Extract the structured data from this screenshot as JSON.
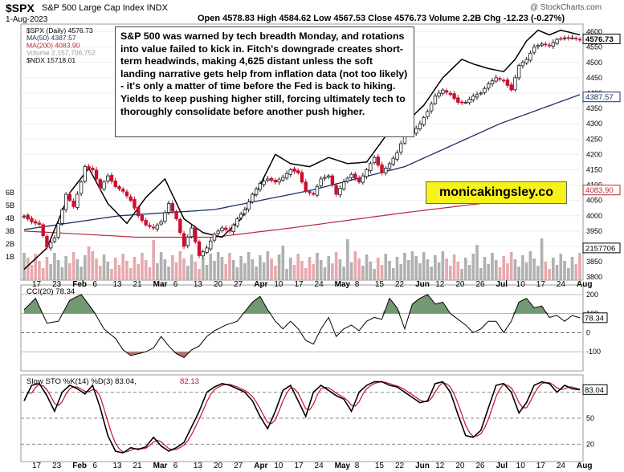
{
  "header": {
    "symbol": "$SPX",
    "name": "S&P 500 Large Cap Index INDX",
    "date": "1-Aug-2023",
    "ohlc": "Open 4578.83  High 4584.62  Low 4567.53  Close 4576.73  Volume 2.2B  Chg -12.23 (-0.27%)",
    "watermark": "@ StockCharts.com"
  },
  "annotation": "S&P 500 was warned by tech breadth Monday, and rotations into value failed to kick in. Fitch's downgrade creates short-term headwinds, making 4,625 distant unless the soft landing narrative gets help from inflation data (not too likely) - it's only a matter of time before the Fed is back to hiking. Yields to keep pushing higher still, forcing ultimately tech to thoroughly consolidate before another push higher.",
  "brand": "monicakingsley.co",
  "colors": {
    "up": "#1a1a1a",
    "down": "#c8102e",
    "ma50": "#1b2f6b",
    "ma200": "#b5283a",
    "ndx": "#000000",
    "vol": "#b0b0b0",
    "vol_down": "#e7a8ad",
    "pos": "#4f7f4f",
    "neg": "#a0524c"
  },
  "chart_data": [
    {
      "type": "candlestick",
      "title": "$SPX (Daily) 4576.73",
      "legend": [
        "$SPX (Daily) 4576.73",
        "MA(50) 4387.57",
        "MA(200) 4083.90",
        "Volume 2,157,706,752",
        "$NDX 15718.01"
      ],
      "yticks": [
        3800,
        3850,
        3900,
        3950,
        4000,
        4050,
        4100,
        4150,
        4200,
        4250,
        4300,
        4350,
        4400,
        4450,
        4500,
        4550,
        4600
      ],
      "ylim": [
        3790,
        4625
      ],
      "volume_ticks": [
        "6B",
        "5B",
        "4B",
        "3B",
        "2B",
        "1B"
      ],
      "price_labels": {
        "last": "4576.73",
        "ma50": "4387.57",
        "ma200": "4083.90",
        "volume": "2157706"
      },
      "x_labels": [
        "17",
        "23",
        "Feb",
        "6",
        "13",
        "21",
        "Mar",
        "6",
        "13",
        "20",
        "27",
        "Apr",
        "10",
        "17",
        "24",
        "May",
        "8",
        "15",
        "22",
        "Jun",
        "12",
        "20",
        "26",
        "Jul",
        "10",
        "17",
        "24",
        "Aug"
      ],
      "anchors": [
        [
          0,
          3999
        ],
        [
          2,
          3980
        ],
        [
          4,
          3972
        ],
        [
          6,
          3898
        ],
        [
          8,
          3928
        ],
        [
          10,
          4020
        ],
        [
          11,
          4070
        ],
        [
          13,
          4030
        ],
        [
          15,
          4110
        ],
        [
          16,
          4160
        ],
        [
          18,
          4150
        ],
        [
          20,
          4090
        ],
        [
          22,
          4130
        ],
        [
          24,
          4095
        ],
        [
          26,
          4080
        ],
        [
          28,
          4050
        ],
        [
          30,
          4000
        ],
        [
          32,
          3970
        ],
        [
          34,
          3960
        ],
        [
          36,
          3980
        ],
        [
          38,
          4040
        ],
        [
          40,
          3990
        ],
        [
          42,
          3900
        ],
        [
          44,
          3960
        ],
        [
          46,
          3870
        ],
        [
          48,
          3895
        ],
        [
          50,
          3940
        ],
        [
          52,
          3960
        ],
        [
          54,
          3950
        ],
        [
          56,
          3990
        ],
        [
          58,
          4020
        ],
        [
          60,
          4070
        ],
        [
          62,
          4105
        ],
        [
          64,
          4120
        ],
        [
          66,
          4110
        ],
        [
          68,
          4125
        ],
        [
          70,
          4150
        ],
        [
          72,
          4140
        ],
        [
          74,
          4080
        ],
        [
          76,
          4070
        ],
        [
          78,
          4120
        ],
        [
          80,
          4130
        ],
        [
          82,
          4070
        ],
        [
          84,
          4110
        ],
        [
          86,
          4135
        ],
        [
          88,
          4110
        ],
        [
          90,
          4150
        ],
        [
          92,
          4190
        ],
        [
          94,
          4140
        ],
        [
          96,
          4170
        ],
        [
          98,
          4205
        ],
        [
          100,
          4265
        ],
        [
          102,
          4270
        ],
        [
          104,
          4300
        ],
        [
          106,
          4340
        ],
        [
          108,
          4390
        ],
        [
          110,
          4410
        ],
        [
          112,
          4395
        ],
        [
          114,
          4370
        ],
        [
          116,
          4370
        ],
        [
          118,
          4390
        ],
        [
          120,
          4400
        ],
        [
          122,
          4430
        ],
        [
          124,
          4450
        ],
        [
          126,
          4440
        ],
        [
          128,
          4410
        ],
        [
          130,
          4490
        ],
        [
          132,
          4510
        ],
        [
          134,
          4550
        ],
        [
          136,
          4560
        ],
        [
          138,
          4555
        ],
        [
          140,
          4575
        ],
        [
          142,
          4580
        ],
        [
          144,
          4580
        ],
        [
          146,
          4575
        ]
      ],
      "ma50_anchors": [
        [
          0,
          3955
        ],
        [
          25,
          4000
        ],
        [
          50,
          4020
        ],
        [
          75,
          4082
        ],
        [
          100,
          4160
        ],
        [
          125,
          4300
        ],
        [
          146,
          4395
        ]
      ],
      "ma200_anchors": [
        [
          0,
          3950
        ],
        [
          30,
          3930
        ],
        [
          50,
          3930
        ],
        [
          70,
          3960
        ],
        [
          100,
          4010
        ],
        [
          120,
          4040
        ],
        [
          146,
          4084
        ]
      ],
      "ndx_anchors": [
        [
          0,
          3825
        ],
        [
          6,
          3895
        ],
        [
          12,
          4075
        ],
        [
          17,
          4155
        ],
        [
          22,
          4040
        ],
        [
          27,
          3975
        ],
        [
          32,
          4060
        ],
        [
          37,
          4120
        ],
        [
          42,
          3990
        ],
        [
          47,
          3945
        ],
        [
          52,
          3930
        ],
        [
          57,
          3990
        ],
        [
          62,
          4100
        ],
        [
          66,
          4200
        ],
        [
          70,
          4170
        ],
        [
          75,
          4160
        ],
        [
          80,
          4190
        ],
        [
          85,
          4170
        ],
        [
          90,
          4175
        ],
        [
          95,
          4260
        ],
        [
          100,
          4300
        ],
        [
          105,
          4360
        ],
        [
          110,
          4450
        ],
        [
          115,
          4510
        ],
        [
          118,
          4495
        ],
        [
          122,
          4480
        ],
        [
          126,
          4470
        ],
        [
          129,
          4510
        ],
        [
          132,
          4570
        ],
        [
          135,
          4605
        ],
        [
          138,
          4590
        ],
        [
          141,
          4605
        ],
        [
          146,
          4590
        ]
      ]
    },
    {
      "type": "line",
      "title": "CCI(20) 78.34",
      "last": "78.34",
      "yticks": [
        200,
        100,
        0,
        -100
      ],
      "ylim": [
        -200,
        250
      ],
      "anchors": [
        [
          0,
          120
        ],
        [
          3,
          180
        ],
        [
          6,
          50
        ],
        [
          9,
          60
        ],
        [
          12,
          170
        ],
        [
          15,
          200
        ],
        [
          18,
          120
        ],
        [
          21,
          20
        ],
        [
          24,
          -30
        ],
        [
          26,
          -90
        ],
        [
          28,
          -120
        ],
        [
          30,
          -110
        ],
        [
          32,
          -100
        ],
        [
          34,
          -80
        ],
        [
          36,
          -20
        ],
        [
          38,
          -70
        ],
        [
          40,
          -110
        ],
        [
          42,
          -130
        ],
        [
          44,
          -90
        ],
        [
          46,
          -70
        ],
        [
          48,
          -20
        ],
        [
          50,
          10
        ],
        [
          53,
          40
        ],
        [
          56,
          60
        ],
        [
          58,
          110
        ],
        [
          60,
          160
        ],
        [
          62,
          190
        ],
        [
          64,
          120
        ],
        [
          66,
          60
        ],
        [
          68,
          20
        ],
        [
          70,
          60
        ],
        [
          72,
          20
        ],
        [
          74,
          -40
        ],
        [
          76,
          -60
        ],
        [
          78,
          20
        ],
        [
          80,
          80
        ],
        [
          82,
          -20
        ],
        [
          84,
          20
        ],
        [
          86,
          40
        ],
        [
          88,
          10
        ],
        [
          90,
          60
        ],
        [
          92,
          80
        ],
        [
          94,
          70
        ],
        [
          96,
          180
        ],
        [
          98,
          130
        ],
        [
          100,
          20
        ],
        [
          102,
          150
        ],
        [
          104,
          180
        ],
        [
          106,
          200
        ],
        [
          108,
          150
        ],
        [
          110,
          160
        ],
        [
          112,
          100
        ],
        [
          114,
          70
        ],
        [
          116,
          40
        ],
        [
          118,
          0
        ],
        [
          120,
          20
        ],
        [
          122,
          60
        ],
        [
          124,
          60
        ],
        [
          126,
          0
        ],
        [
          128,
          60
        ],
        [
          130,
          160
        ],
        [
          132,
          180
        ],
        [
          134,
          130
        ],
        [
          136,
          140
        ],
        [
          138,
          80
        ],
        [
          140,
          90
        ],
        [
          142,
          60
        ],
        [
          144,
          90
        ],
        [
          146,
          78
        ]
      ]
    },
    {
      "type": "line",
      "title": "Slow STO %K(14) %D(3) 83.04, 82.13",
      "title_k": "Slow STO %K(14) %D(3) 83.04,",
      "title_d": "82.13",
      "last": "83.04",
      "yticks": [
        80,
        50,
        20
      ],
      "ylim": [
        0,
        100
      ],
      "k_anchors": [
        [
          0,
          70
        ],
        [
          2,
          88
        ],
        [
          4,
          90
        ],
        [
          6,
          76
        ],
        [
          8,
          58
        ],
        [
          10,
          80
        ],
        [
          12,
          88
        ],
        [
          14,
          84
        ],
        [
          16,
          78
        ],
        [
          18,
          88
        ],
        [
          20,
          62
        ],
        [
          22,
          30
        ],
        [
          24,
          12
        ],
        [
          26,
          10
        ],
        [
          28,
          16
        ],
        [
          30,
          14
        ],
        [
          32,
          17
        ],
        [
          34,
          28
        ],
        [
          36,
          18
        ],
        [
          38,
          12
        ],
        [
          40,
          16
        ],
        [
          42,
          22
        ],
        [
          44,
          40
        ],
        [
          46,
          58
        ],
        [
          48,
          80
        ],
        [
          50,
          86
        ],
        [
          52,
          90
        ],
        [
          54,
          88
        ],
        [
          56,
          84
        ],
        [
          58,
          80
        ],
        [
          60,
          70
        ],
        [
          62,
          52
        ],
        [
          64,
          38
        ],
        [
          66,
          58
        ],
        [
          68,
          82
        ],
        [
          70,
          88
        ],
        [
          72,
          70
        ],
        [
          74,
          52
        ],
        [
          76,
          80
        ],
        [
          78,
          88
        ],
        [
          80,
          82
        ],
        [
          82,
          76
        ],
        [
          84,
          72
        ],
        [
          86,
          58
        ],
        [
          88,
          80
        ],
        [
          90,
          88
        ],
        [
          92,
          92
        ],
        [
          94,
          92
        ],
        [
          96,
          88
        ],
        [
          98,
          86
        ],
        [
          100,
          80
        ],
        [
          102,
          74
        ],
        [
          104,
          68
        ],
        [
          106,
          70
        ],
        [
          108,
          90
        ],
        [
          110,
          92
        ],
        [
          112,
          80
        ],
        [
          114,
          54
        ],
        [
          116,
          30
        ],
        [
          118,
          28
        ],
        [
          120,
          36
        ],
        [
          122,
          62
        ],
        [
          124,
          88
        ],
        [
          126,
          90
        ],
        [
          128,
          80
        ],
        [
          130,
          56
        ],
        [
          132,
          68
        ],
        [
          134,
          88
        ],
        [
          136,
          92
        ],
        [
          138,
          90
        ],
        [
          140,
          80
        ],
        [
          142,
          88
        ],
        [
          144,
          84
        ],
        [
          146,
          83
        ]
      ]
    }
  ]
}
